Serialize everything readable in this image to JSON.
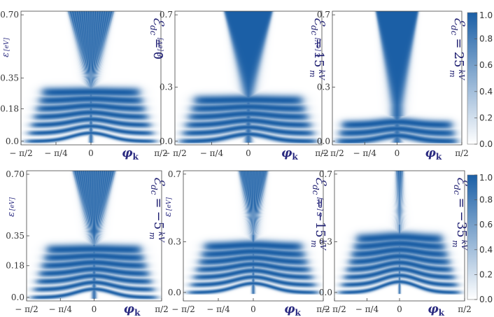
{
  "chart_data": [
    {
      "type": "heatmap",
      "panel": "top-left",
      "xlabel": "φk",
      "ylabel": "ε [eV]",
      "xticks": [
        "− π/2",
        "− π/4",
        "0",
        "π/2"
      ],
      "xtick_values": [
        -1.5708,
        -0.7854,
        0,
        1.5708
      ],
      "xlim": [
        -1.5708,
        1.5708
      ],
      "ylim": [
        -0.02,
        0.72
      ],
      "yticks": [
        "0.0",
        "0.18",
        "0.35",
        "0.70"
      ],
      "ytick_values": [
        0.0,
        0.18,
        0.35,
        0.7
      ],
      "field_label": "ℰdc = 0",
      "field_value": 0,
      "field_unit": "kV/m",
      "cone_gap_eV": 0.29,
      "cone_neck_width": 0.05,
      "cone_top_half_width_rad": 0.52,
      "band_energies_eV": [
        0.0,
        0.045,
        0.09,
        0.135,
        0.18,
        0.225,
        0.27
      ],
      "band_blur": 0.15
    },
    {
      "type": "heatmap",
      "panel": "top-middle",
      "xlabel": "φk",
      "ylabel": "ε [eV]",
      "xticks": [
        "− π/2",
        "− π/4",
        "0",
        "π/2"
      ],
      "xtick_values": [
        -1.5708,
        -0.7854,
        0,
        1.5708
      ],
      "xlim": [
        -1.5708,
        1.5708
      ],
      "ylim": [
        -0.02,
        0.72
      ],
      "yticks": [
        "0.0",
        "0.3",
        "0.7"
      ],
      "ytick_values": [
        0.0,
        0.3,
        0.7
      ],
      "field_label": "ℰdc = 15 kV/m",
      "field_value": 15,
      "field_unit": "kV/m",
      "cone_gap_eV": 0.25,
      "cone_neck_width": 0.09,
      "cone_top_half_width_rad": 0.52,
      "band_energies_eV": [
        0.0,
        0.045,
        0.09,
        0.135,
        0.18,
        0.225
      ],
      "band_blur": 0.35
    },
    {
      "type": "heatmap",
      "panel": "top-right",
      "xlabel": "φk",
      "ylabel": "ε [eV]",
      "xticks": [
        "− π/2",
        "− π/4",
        "0",
        "π/2"
      ],
      "xtick_values": [
        -1.5708,
        -0.7854,
        0,
        1.5708
      ],
      "xlim": [
        -1.5708,
        1.5708
      ],
      "ylim": [
        -0.02,
        0.72
      ],
      "yticks": [
        "0.0",
        "0.3",
        "0.7"
      ],
      "ytick_values": [
        0.0,
        0.3,
        0.7
      ],
      "field_label": "ℰdc = 25 kV/m",
      "field_value": 25,
      "field_unit": "kV/m",
      "cone_gap_eV": 0.2,
      "cone_neck_width": 0.13,
      "cone_top_half_width_rad": 0.52,
      "band_energies_eV": [
        0.0,
        0.045,
        0.09
      ],
      "band_blur": 0.6
    },
    {
      "type": "heatmap",
      "panel": "bottom-left",
      "xlabel": "φk",
      "ylabel": "ε [eV]",
      "xticks": [
        "− π/2",
        "− π/4",
        "0",
        "π/2"
      ],
      "xtick_values": [
        -1.5708,
        -0.7854,
        0,
        1.5708
      ],
      "xlim": [
        -1.5708,
        1.5708
      ],
      "ylim": [
        -0.02,
        0.72
      ],
      "yticks": [
        "0.0",
        "0.18",
        "0.35",
        "0.70"
      ],
      "ytick_values": [
        0.0,
        0.18,
        0.35,
        0.7
      ],
      "field_label": "ℰdc = −5 kV/m",
      "field_value": -5,
      "field_unit": "kV/m",
      "cone_gap_eV": 0.3,
      "cone_neck_width": 0.06,
      "cone_top_half_width_rad": 0.5,
      "band_energies_eV": [
        0.0,
        0.045,
        0.09,
        0.135,
        0.18,
        0.225,
        0.27
      ],
      "band_blur": 0.2
    },
    {
      "type": "heatmap",
      "panel": "bottom-middle",
      "xlabel": "φk",
      "ylabel": "ε [eV]",
      "xticks": [
        "− π/2",
        "− π/4",
        "0",
        "π/2"
      ],
      "xtick_values": [
        -1.5708,
        -0.7854,
        0,
        1.5708
      ],
      "xlim": [
        -1.5708,
        1.5708
      ],
      "ylim": [
        -0.05,
        0.72
      ],
      "yticks": [
        "0.0",
        "0.3",
        "0.7"
      ],
      "ytick_values": [
        0.0,
        0.3,
        0.7
      ],
      "field_label": "ℰdc = −15 kV/m",
      "field_value": -15,
      "field_unit": "kV/m",
      "cone_gap_eV": 0.34,
      "cone_neck_width": 0.04,
      "cone_top_half_width_rad": 0.33,
      "band_energies_eV": [
        0.0,
        0.045,
        0.09,
        0.135,
        0.18,
        0.225,
        0.27
      ],
      "band_blur": 0.2
    },
    {
      "type": "heatmap",
      "panel": "bottom-right",
      "xlabel": "φk",
      "ylabel": "ε [eV]",
      "xticks": [
        "− π/2",
        "− π/4",
        "0",
        "π/2"
      ],
      "xtick_values": [
        -1.5708,
        -0.7854,
        0,
        1.5708
      ],
      "xlim": [
        -1.5708,
        1.5708
      ],
      "ylim": [
        -0.05,
        0.72
      ],
      "yticks": [
        "0.0",
        "0.3",
        "0.7"
      ],
      "ytick_values": [
        0.0,
        0.3,
        0.7
      ],
      "field_label": "ℰdc = −35 kV/m",
      "field_value": -35,
      "field_unit": "kV/m",
      "cone_gap_eV": 0.4,
      "cone_neck_width": 0.03,
      "cone_top_half_width_rad": 0.09,
      "band_energies_eV": [
        0.0,
        0.045,
        0.09,
        0.135,
        0.18,
        0.225,
        0.27,
        0.315
      ],
      "band_blur": 0.2
    }
  ],
  "colorbars": [
    {
      "position": "top",
      "min": 0.0,
      "max": 1.0,
      "ticks": [
        "1.0",
        "0.8",
        "0.6",
        "0.4",
        "0.2",
        "0.0"
      ],
      "tick_values": [
        1.0,
        0.8,
        0.6,
        0.4,
        0.2,
        0.0
      ]
    },
    {
      "position": "bottom",
      "min": 0.0,
      "max": 1.0,
      "ticks": [
        "1.0",
        "0.8",
        "0.6",
        "0.4",
        "0.2",
        "0.0"
      ],
      "tick_values": [
        1.0,
        0.8,
        0.6,
        0.4,
        0.2,
        0.0
      ]
    }
  ],
  "colors": {
    "max": "#1b5fa6",
    "min": "#ffffff",
    "axis_label": "#2a2a80"
  },
  "text": {
    "eps": "ε",
    "ev_unit": "[eV]",
    "phi": "φ",
    "k_sub": "k",
    "E": "ℰ",
    "dc_sub": "dc",
    "equals": "=",
    "kV": "kV",
    "m": "m"
  }
}
